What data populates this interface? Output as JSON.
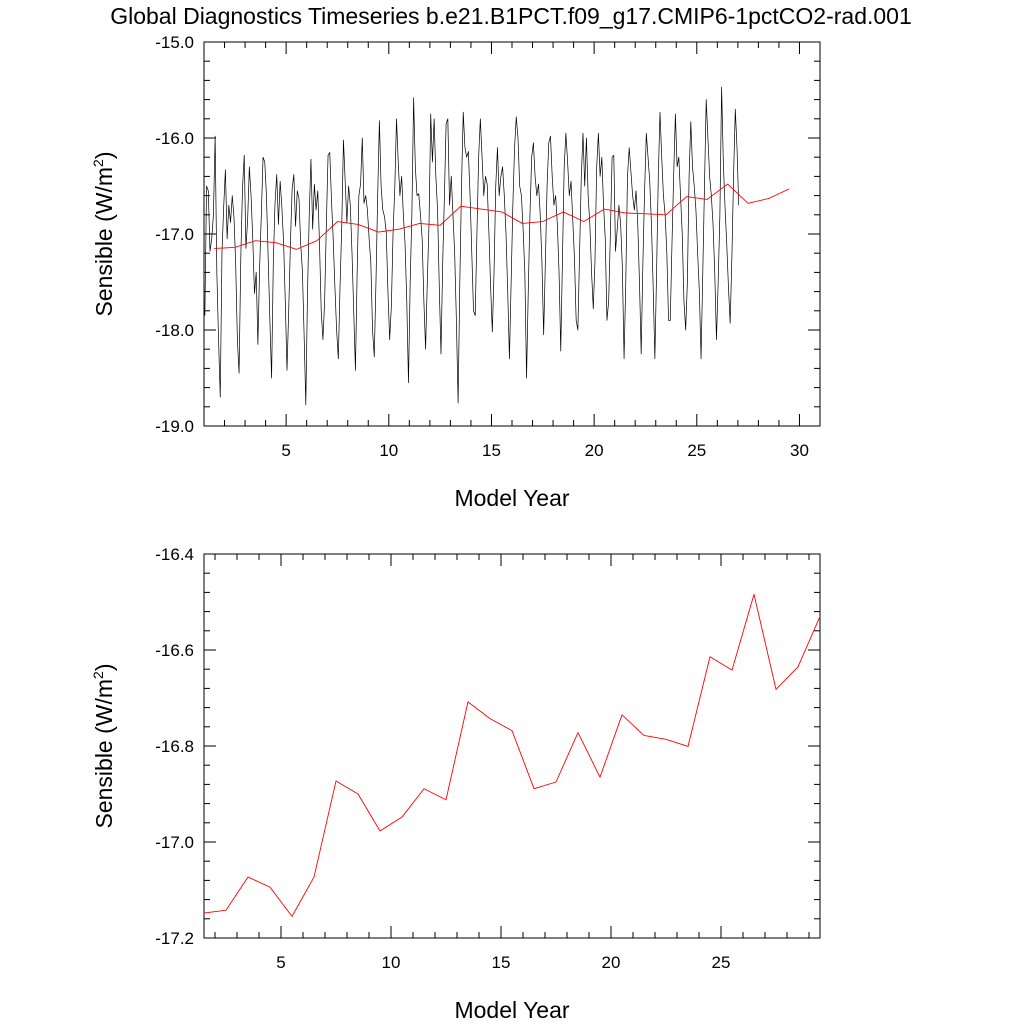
{
  "title": "Global Diagnostics Timeseries b.e21.B1PCT.f09_g17.CMIP6-1pctCO2-rad.001",
  "colors": {
    "monthly": "#000000",
    "annual": "#ff0000"
  },
  "chart_data": [
    {
      "type": "line",
      "xlabel": "Model Year",
      "ylabel": "Sensible (W/m2)",
      "ylabel_base": "Sensible (W/m",
      "ylabel_sup": "2",
      "ylabel_end": ")",
      "xlim": [
        1.0,
        31.0
      ],
      "ylim": [
        -19.0,
        -15.0
      ],
      "xticks": [
        5,
        10,
        15,
        20,
        25,
        30
      ],
      "xtick_labels": [
        "5",
        "10",
        "15",
        "20",
        "25",
        "30"
      ],
      "yticks": [
        -19.0,
        -18.0,
        -17.0,
        -16.0,
        -15.0
      ],
      "ytick_labels": [
        "-19.0",
        "-18.0",
        "-17.0",
        "-16.0",
        "-15.0"
      ],
      "grid": false,
      "legend": "none",
      "series": [
        {
          "color": "#000000",
          "x_start": 1.042,
          "x_step": 0.08333,
          "values": [
            -17.85,
            -16.5,
            -16.55,
            -17.18,
            -17.05,
            -16.8,
            -15.98,
            -17.4,
            -18.1,
            -18.7,
            -17.2,
            -16.72,
            -16.33,
            -17.05,
            -16.7,
            -16.88,
            -16.6,
            -16.82,
            -17.3,
            -18.1,
            -18.45,
            -17.25,
            -16.52,
            -16.18,
            -17.15,
            -16.85,
            -16.3,
            -16.6,
            -17.05,
            -17.62,
            -17.4,
            -18.15,
            -17.35,
            -16.8,
            -16.2,
            -16.25,
            -16.6,
            -17.25,
            -17.9,
            -18.5,
            -17.3,
            -16.68,
            -16.38,
            -16.9,
            -16.45,
            -16.72,
            -17.08,
            -17.7,
            -18.42,
            -17.8,
            -17.1,
            -16.53,
            -16.38,
            -16.92,
            -16.55,
            -16.63,
            -17.1,
            -17.38,
            -18.05,
            -18.78,
            -17.6,
            -16.8,
            -16.22,
            -16.95,
            -16.48,
            -16.75,
            -16.55,
            -17.1,
            -17.8,
            -18.1,
            -17.7,
            -16.9,
            -16.18,
            -16.15,
            -16.65,
            -17.05,
            -17.55,
            -18.0,
            -18.3,
            -17.55,
            -16.92,
            -16.02,
            -16.45,
            -16.88,
            -16.5,
            -16.7,
            -17.2,
            -17.8,
            -18.42,
            -17.4,
            -16.6,
            -16.48,
            -16.0,
            -16.68,
            -16.6,
            -16.75,
            -17.05,
            -17.3,
            -18.0,
            -18.28,
            -17.5,
            -16.6,
            -15.82,
            -16.5,
            -16.75,
            -16.82,
            -16.98,
            -17.6,
            -18.1,
            -17.75,
            -16.98,
            -16.52,
            -15.8,
            -16.25,
            -16.6,
            -16.4,
            -16.8,
            -17.1,
            -17.7,
            -18.55,
            -17.5,
            -16.78,
            -15.58,
            -16.3,
            -16.6,
            -16.58,
            -16.8,
            -17.05,
            -17.7,
            -18.2,
            -17.5,
            -16.9,
            -15.75,
            -16.25,
            -15.8,
            -16.4,
            -16.75,
            -17.55,
            -18.25,
            -17.3,
            -16.6,
            -15.85,
            -15.8,
            -16.7,
            -16.4,
            -16.8,
            -17.2,
            -17.9,
            -18.76,
            -17.5,
            -16.5,
            -15.73,
            -16.1,
            -16.2,
            -16.14,
            -16.6,
            -17.2,
            -17.8,
            -17.85,
            -17.0,
            -16.2,
            -15.8,
            -16.2,
            -16.6,
            -16.4,
            -16.48,
            -16.98,
            -17.55,
            -18.02,
            -17.4,
            -16.5,
            -16.1,
            -16.6,
            -16.4,
            -16.3,
            -16.6,
            -17.0,
            -17.6,
            -18.3,
            -17.5,
            -16.7,
            -16.1,
            -15.78,
            -16.0,
            -16.5,
            -16.6,
            -16.95,
            -17.4,
            -18.5,
            -17.6,
            -16.8,
            -16.2,
            -16.05,
            -16.4,
            -16.6,
            -16.48,
            -16.8,
            -17.3,
            -18.05,
            -17.3,
            -16.5,
            -16.05,
            -15.98,
            -16.4,
            -16.7,
            -16.6,
            -16.9,
            -17.4,
            -18.22,
            -17.25,
            -16.3,
            -15.95,
            -16.25,
            -16.6,
            -16.45,
            -16.85,
            -17.25,
            -17.9,
            -18.0,
            -17.2,
            -16.4,
            -15.95,
            -16.5,
            -16.0,
            -16.6,
            -16.9,
            -17.4,
            -17.78,
            -17.28,
            -16.3,
            -15.95,
            -16.4,
            -16.2,
            -16.7,
            -17.05,
            -17.9,
            -17.7,
            -17.0,
            -16.2,
            -16.18,
            -17.18,
            -16.95,
            -16.7,
            -16.9,
            -17.35,
            -18.3,
            -17.5,
            -16.4,
            -16.1,
            -16.35,
            -16.6,
            -16.75,
            -16.55,
            -16.9,
            -17.5,
            -18.25,
            -17.3,
            -16.55,
            -15.95,
            -16.2,
            -16.45,
            -16.9,
            -17.55,
            -18.3,
            -17.4,
            -16.4,
            -15.73,
            -16.2,
            -16.6,
            -16.8,
            -17.2,
            -17.9,
            -17.9,
            -17.1,
            -16.38,
            -15.75,
            -16.3,
            -16.2,
            -16.6,
            -17.0,
            -17.7,
            -18.0,
            -17.5,
            -16.4,
            -15.83,
            -16.3,
            -16.5,
            -16.75,
            -17.2,
            -17.6,
            -18.3,
            -17.4,
            -16.5,
            -15.6,
            -16.0,
            -16.4,
            -16.6,
            -16.9,
            -17.4,
            -18.1,
            -17.5,
            -16.8,
            -15.47,
            -16.25,
            -16.72,
            -17.1,
            -17.55,
            -17.93,
            -17.25,
            -16.4,
            -15.7,
            -16.1,
            -16.7
          ]
        },
        {
          "color": "#ff0000",
          "x_start": 1.5,
          "x_step": 1.0,
          "values": [
            -17.15,
            -17.14,
            -17.07,
            -17.09,
            -17.16,
            -17.07,
            -16.87,
            -16.9,
            -16.98,
            -16.95,
            -16.89,
            -16.91,
            -16.71,
            -16.74,
            -16.77,
            -16.89,
            -16.87,
            -16.77,
            -16.87,
            -16.74,
            -16.78,
            -16.79,
            -16.8,
            -16.61,
            -16.64,
            -16.48,
            -16.68,
            -16.63,
            -16.53
          ]
        }
      ]
    },
    {
      "type": "line",
      "xlabel": "Model Year",
      "ylabel": "Sensible (W/m2)",
      "ylabel_base": "Sensible (W/m",
      "ylabel_sup": "2",
      "ylabel_end": ")",
      "xlim": [
        1.5,
        29.5
      ],
      "ylim": [
        -17.2,
        -16.4
      ],
      "xticks": [
        5,
        10,
        15,
        20,
        25
      ],
      "xtick_labels": [
        "5",
        "10",
        "15",
        "20",
        "25"
      ],
      "yticks": [
        -17.2,
        -17.0,
        -16.8,
        -16.6,
        -16.4
      ],
      "ytick_labels": [
        "-17.2",
        "-17.0",
        "-16.8",
        "-16.6",
        "-16.4"
      ],
      "grid": false,
      "legend": "none",
      "series": [
        {
          "color": "#ff0000",
          "x_start": 1.5,
          "x_step": 1.0,
          "values": [
            -17.148,
            -17.142,
            -17.073,
            -17.094,
            -17.155,
            -17.073,
            -16.873,
            -16.9,
            -16.977,
            -16.948,
            -16.889,
            -16.912,
            -16.708,
            -16.743,
            -16.768,
            -16.889,
            -16.875,
            -16.772,
            -16.865,
            -16.735,
            -16.778,
            -16.786,
            -16.801,
            -16.614,
            -16.642,
            -16.484,
            -16.682,
            -16.635,
            -16.53
          ]
        }
      ]
    }
  ]
}
